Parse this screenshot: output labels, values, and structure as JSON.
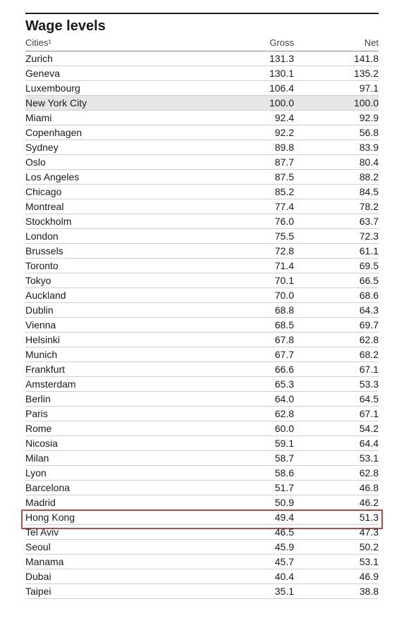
{
  "title": "Wage levels",
  "columns": {
    "city": "Cities¹",
    "gross": "Gross",
    "net": "Net"
  },
  "highlight_row_city": "Hong Kong",
  "shaded_row_city": "New York City",
  "colors": {
    "text": "#1a1a1a",
    "subtext": "#444444",
    "rule": "#d0d0d0",
    "header_rule": "#888888",
    "top_rule": "#1a1a1a",
    "shaded_bg": "#e6e6e6",
    "highlight_border": "#b84a4a",
    "background": "#ffffff"
  },
  "font_sizes": {
    "title": 20,
    "header": 13,
    "row": 14
  },
  "rows": [
    {
      "city": "Zurich",
      "gross": "131.3",
      "net": "141.8"
    },
    {
      "city": "Geneva",
      "gross": "130.1",
      "net": "135.2"
    },
    {
      "city": "Luxembourg",
      "gross": "106.4",
      "net": "97.1"
    },
    {
      "city": "New York City",
      "gross": "100.0",
      "net": "100.0"
    },
    {
      "city": "Miami",
      "gross": "92.4",
      "net": "92.9"
    },
    {
      "city": "Copenhagen",
      "gross": "92.2",
      "net": "56.8"
    },
    {
      "city": "Sydney",
      "gross": "89.8",
      "net": "83.9"
    },
    {
      "city": "Oslo",
      "gross": "87.7",
      "net": "80.4"
    },
    {
      "city": "Los Angeles",
      "gross": "87.5",
      "net": "88.2"
    },
    {
      "city": "Chicago",
      "gross": "85.2",
      "net": "84.5"
    },
    {
      "city": "Montreal",
      "gross": "77.4",
      "net": "78.2"
    },
    {
      "city": "Stockholm",
      "gross": "76.0",
      "net": "63.7"
    },
    {
      "city": "London",
      "gross": "75.5",
      "net": "72.3"
    },
    {
      "city": "Brussels",
      "gross": "72.8",
      "net": "61.1"
    },
    {
      "city": "Toronto",
      "gross": "71.4",
      "net": "69.5"
    },
    {
      "city": "Tokyo",
      "gross": "70.1",
      "net": "66.5"
    },
    {
      "city": "Auckland",
      "gross": "70.0",
      "net": "68.6"
    },
    {
      "city": "Dublin",
      "gross": "68.8",
      "net": "64.3"
    },
    {
      "city": "Vienna",
      "gross": "68.5",
      "net": "69.7"
    },
    {
      "city": "Helsinki",
      "gross": "67.8",
      "net": "62.8"
    },
    {
      "city": "Munich",
      "gross": "67.7",
      "net": "68.2"
    },
    {
      "city": "Frankfurt",
      "gross": "66.6",
      "net": "67.1"
    },
    {
      "city": "Amsterdam",
      "gross": "65.3",
      "net": "53.3"
    },
    {
      "city": "Berlin",
      "gross": "64.0",
      "net": "64.5"
    },
    {
      "city": "Paris",
      "gross": "62.8",
      "net": "67.1"
    },
    {
      "city": "Rome",
      "gross": "60.0",
      "net": "54.2"
    },
    {
      "city": "Nicosia",
      "gross": "59.1",
      "net": "64.4"
    },
    {
      "city": "Milan",
      "gross": "58.7",
      "net": "53.1"
    },
    {
      "city": "Lyon",
      "gross": "58.6",
      "net": "62.8"
    },
    {
      "city": "Barcelona",
      "gross": "51.7",
      "net": "46.8"
    },
    {
      "city": "Madrid",
      "gross": "50.9",
      "net": "46.2"
    },
    {
      "city": "Hong Kong",
      "gross": "49.4",
      "net": "51.3"
    },
    {
      "city": "Tel Aviv",
      "gross": "46.5",
      "net": "47.3"
    },
    {
      "city": "Seoul",
      "gross": "45.9",
      "net": "50.2"
    },
    {
      "city": "Manama",
      "gross": "45.7",
      "net": "53.1"
    },
    {
      "city": "Dubai",
      "gross": "40.4",
      "net": "46.9"
    },
    {
      "city": "Taipei",
      "gross": "35.1",
      "net": "38.8"
    }
  ]
}
